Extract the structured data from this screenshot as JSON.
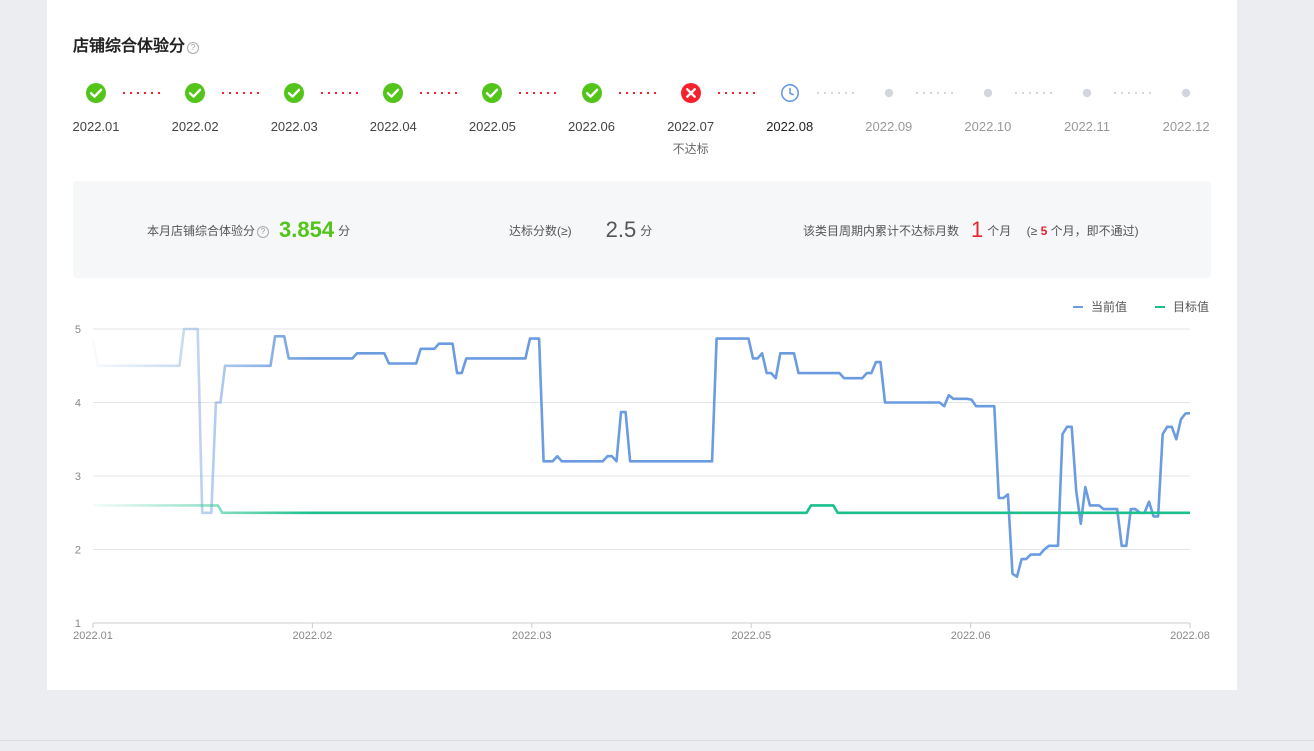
{
  "page": {
    "title": "店铺综合体验分",
    "help_glyph": "?"
  },
  "timeline": [
    {
      "month": "2022.01",
      "status": "pass"
    },
    {
      "month": "2022.02",
      "status": "pass"
    },
    {
      "month": "2022.03",
      "status": "pass"
    },
    {
      "month": "2022.04",
      "status": "pass"
    },
    {
      "month": "2022.05",
      "status": "pass"
    },
    {
      "month": "2022.06",
      "status": "pass"
    },
    {
      "month": "2022.07",
      "status": "fail",
      "note": "不达标"
    },
    {
      "month": "2022.08",
      "status": "current"
    },
    {
      "month": "2022.09",
      "status": "future"
    },
    {
      "month": "2022.10",
      "status": "future"
    },
    {
      "month": "2022.11",
      "status": "future"
    },
    {
      "month": "2022.12",
      "status": "future"
    }
  ],
  "summary": {
    "score_label": "本月店铺综合体验分",
    "score_value": "3.854",
    "score_unit": "分",
    "target_label": "达标分数(≥)",
    "target_value": "2.5",
    "target_unit": "分",
    "fail_label": "该类目周期内累计不达标月数",
    "fail_value": "1",
    "fail_unit": "个月",
    "rule_prefix": "(≥",
    "rule_count": "5",
    "rule_suffix": "个月，即不通过)"
  },
  "colors": {
    "pass": "#52c41a",
    "fail": "#f5222d",
    "current": "#6b9be0",
    "future": "#d3d6df",
    "current_line": "#6b9be0",
    "target_line": "#1dbf8c"
  },
  "chart_data": {
    "type": "line",
    "x_ticks": [
      "2022.01",
      "2022.02",
      "2022.03",
      "2022.05",
      "2022.06",
      "2022.08"
    ],
    "y_ticks": [
      1,
      2,
      3,
      4,
      5
    ],
    "ylim": [
      1,
      5
    ],
    "grid": true,
    "legend_position": "top-right",
    "series": [
      {
        "name": "当前值",
        "color": "#6b9be0",
        "values": [
          4.85,
          4.5,
          4.5,
          4.5,
          4.5,
          4.5,
          4.5,
          4.5,
          4.5,
          4.5,
          4.5,
          4.5,
          4.5,
          4.5,
          4.5,
          4.5,
          4.5,
          4.5,
          4.5,
          4.5,
          5.0,
          5.0,
          5.0,
          5.0,
          2.5,
          2.5,
          2.5,
          4.0,
          4.0,
          4.5,
          4.5,
          4.5,
          4.5,
          4.5,
          4.5,
          4.5,
          4.5,
          4.5,
          4.5,
          4.5,
          4.9,
          4.9,
          4.9,
          4.6,
          4.6,
          4.6,
          4.6,
          4.6,
          4.6,
          4.6,
          4.6,
          4.6,
          4.6,
          4.6,
          4.6,
          4.6,
          4.6,
          4.6,
          4.67,
          4.67,
          4.67,
          4.67,
          4.67,
          4.67,
          4.67,
          4.53,
          4.53,
          4.53,
          4.53,
          4.53,
          4.53,
          4.53,
          4.73,
          4.73,
          4.73,
          4.73,
          4.8,
          4.8,
          4.8,
          4.8,
          4.4,
          4.4,
          4.6,
          4.6,
          4.6,
          4.6,
          4.6,
          4.6,
          4.6,
          4.6,
          4.6,
          4.6,
          4.6,
          4.6,
          4.6,
          4.6,
          4.87,
          4.87,
          4.87,
          3.2,
          3.2,
          3.2,
          3.27,
          3.2,
          3.2,
          3.2,
          3.2,
          3.2,
          3.2,
          3.2,
          3.2,
          3.2,
          3.2,
          3.27,
          3.27,
          3.2,
          3.87,
          3.87,
          3.2,
          3.2,
          3.2,
          3.2,
          3.2,
          3.2,
          3.2,
          3.2,
          3.2,
          3.2,
          3.2,
          3.2,
          3.2,
          3.2,
          3.2,
          3.2,
          3.2,
          3.2,
          3.2,
          4.87,
          4.87,
          4.87,
          4.87,
          4.87,
          4.87,
          4.87,
          4.87,
          4.6,
          4.6,
          4.67,
          4.4,
          4.4,
          4.33,
          4.67,
          4.67,
          4.67,
          4.67,
          4.4,
          4.4,
          4.4,
          4.4,
          4.4,
          4.4,
          4.4,
          4.4,
          4.4,
          4.4,
          4.33,
          4.33,
          4.33,
          4.33,
          4.33,
          4.4,
          4.4,
          4.55,
          4.55,
          4.0,
          4.0,
          4.0,
          4.0,
          4.0,
          4.0,
          4.0,
          4.0,
          4.0,
          4.0,
          4.0,
          4.0,
          4.0,
          3.95,
          4.1,
          4.05,
          4.05,
          4.05,
          4.05,
          4.04,
          3.95,
          3.95,
          3.95,
          3.95,
          3.95,
          2.7,
          2.7,
          2.75,
          1.67,
          1.63,
          1.87,
          1.87,
          1.93,
          1.93,
          1.93,
          2.0,
          2.05,
          2.05,
          2.05,
          3.57,
          3.67,
          3.67,
          2.8,
          2.35,
          2.85,
          2.6,
          2.6,
          2.6,
          2.55,
          2.55,
          2.55,
          2.55,
          2.05,
          2.05,
          2.55,
          2.55,
          2.5,
          2.5,
          2.65,
          2.45,
          2.45,
          3.57,
          3.67,
          3.67,
          3.5,
          3.77,
          3.85,
          3.854
        ]
      },
      {
        "name": "目标值",
        "color": "#1dbf8c",
        "values": [
          2.6,
          2.6,
          2.6,
          2.6,
          2.6,
          2.6,
          2.6,
          2.6,
          2.6,
          2.6,
          2.6,
          2.6,
          2.6,
          2.6,
          2.6,
          2.6,
          2.6,
          2.6,
          2.6,
          2.6,
          2.6,
          2.6,
          2.6,
          2.6,
          2.6,
          2.6,
          2.6,
          2.6,
          2.6,
          2.5,
          2.5,
          2.5,
          2.5,
          2.5,
          2.5,
          2.5,
          2.5,
          2.5,
          2.5,
          2.5,
          2.5,
          2.5,
          2.5,
          2.5,
          2.5,
          2.5,
          2.5,
          2.5,
          2.5,
          2.5,
          2.5,
          2.5,
          2.5,
          2.5,
          2.5,
          2.5,
          2.5,
          2.5,
          2.5,
          2.5,
          2.5,
          2.5,
          2.5,
          2.5,
          2.5,
          2.5,
          2.5,
          2.5,
          2.5,
          2.5,
          2.5,
          2.5,
          2.5,
          2.5,
          2.5,
          2.5,
          2.5,
          2.5,
          2.5,
          2.5,
          2.5,
          2.5,
          2.5,
          2.5,
          2.5,
          2.5,
          2.5,
          2.5,
          2.5,
          2.5,
          2.5,
          2.5,
          2.5,
          2.5,
          2.5,
          2.5,
          2.5,
          2.5,
          2.5,
          2.5,
          2.5,
          2.5,
          2.5,
          2.5,
          2.5,
          2.5,
          2.5,
          2.5,
          2.5,
          2.5,
          2.5,
          2.5,
          2.5,
          2.5,
          2.5,
          2.5,
          2.5,
          2.5,
          2.5,
          2.5,
          2.5,
          2.5,
          2.5,
          2.5,
          2.5,
          2.5,
          2.5,
          2.5,
          2.5,
          2.5,
          2.5,
          2.5,
          2.5,
          2.5,
          2.5,
          2.5,
          2.5,
          2.5,
          2.5,
          2.5,
          2.5,
          2.5,
          2.5,
          2.5,
          2.5,
          2.5,
          2.5,
          2.5,
          2.5,
          2.5,
          2.5,
          2.5,
          2.5,
          2.5,
          2.5,
          2.5,
          2.5,
          2.5,
          2.5,
          2.5,
          2.5,
          2.6,
          2.6,
          2.6,
          2.6,
          2.6,
          2.6,
          2.5,
          2.5,
          2.5,
          2.5,
          2.5,
          2.5,
          2.5,
          2.5,
          2.5,
          2.5,
          2.5,
          2.5,
          2.5,
          2.5,
          2.5,
          2.5,
          2.5,
          2.5,
          2.5,
          2.5,
          2.5,
          2.5,
          2.5,
          2.5,
          2.5,
          2.5,
          2.5,
          2.5,
          2.5,
          2.5,
          2.5,
          2.5,
          2.5,
          2.5,
          2.5,
          2.5,
          2.5,
          2.5,
          2.5,
          2.5,
          2.5,
          2.5,
          2.5,
          2.5,
          2.5,
          2.5,
          2.5,
          2.5,
          2.5,
          2.5,
          2.5,
          2.5,
          2.5,
          2.5,
          2.5,
          2.5,
          2.5,
          2.5,
          2.5,
          2.5,
          2.5,
          2.5,
          2.5,
          2.5,
          2.5,
          2.5,
          2.5,
          2.5,
          2.5,
          2.5,
          2.5,
          2.5,
          2.5,
          2.5,
          2.5,
          2.5,
          2.5,
          2.5,
          2.5,
          2.5
        ]
      }
    ]
  }
}
